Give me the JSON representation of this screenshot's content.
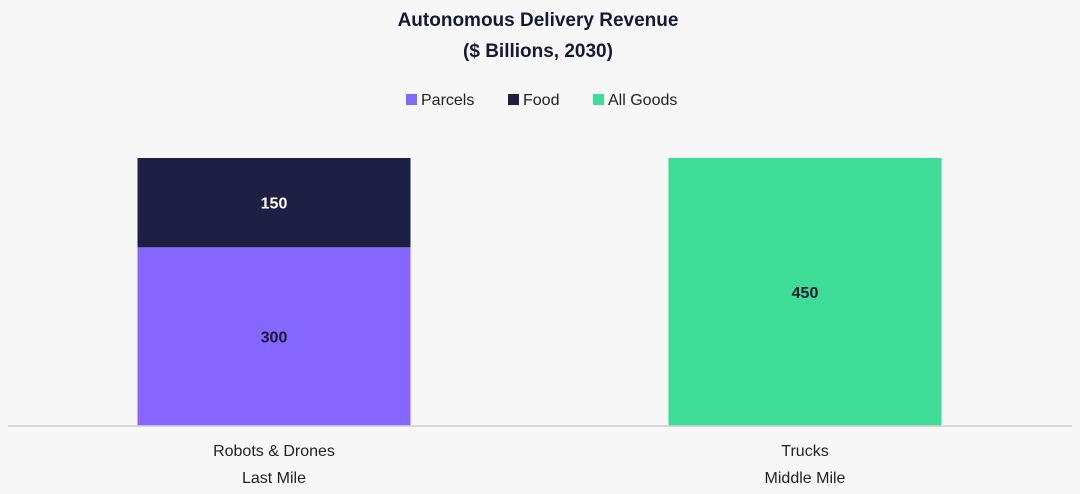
{
  "chart_data": {
    "type": "bar",
    "stacked": true,
    "title": [
      "Autonomous Delivery Revenue",
      "($ Billions, 2030)"
    ],
    "categories": [
      [
        "Robots & Drones",
        "Last Mile"
      ],
      [
        "Trucks",
        "Middle Mile"
      ]
    ],
    "series": [
      {
        "name": "Parcels",
        "color": "#8566fe",
        "label_color": "#141a33",
        "values": [
          300,
          0
        ]
      },
      {
        "name": "Food",
        "color": "#1e1f44",
        "label_color": "#ffffff",
        "values": [
          150,
          0
        ]
      },
      {
        "name": "All Goods",
        "color": "#3ddc97",
        "label_color": "#141a33",
        "values": [
          0,
          450
        ]
      }
    ],
    "xlabel": "",
    "ylabel": "",
    "ylim": [
      0,
      450
    ],
    "grid": false,
    "legend_position": "top-center"
  }
}
